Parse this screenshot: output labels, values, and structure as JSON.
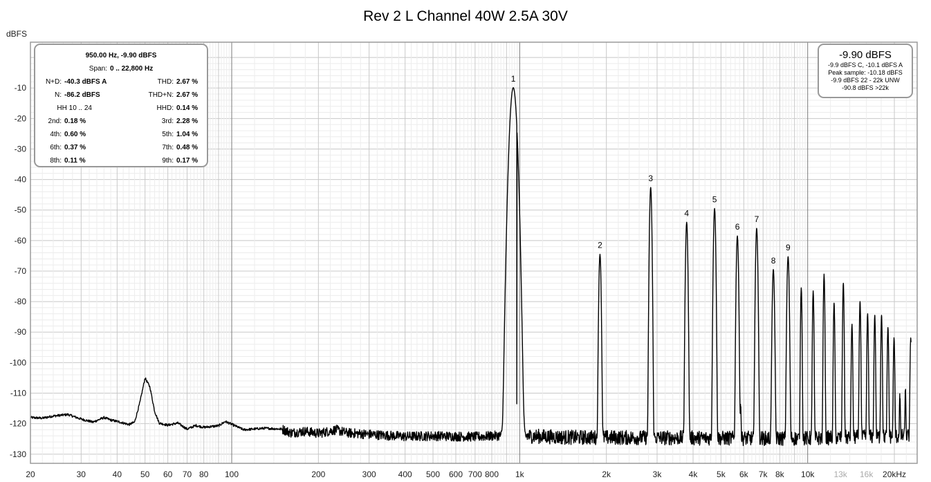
{
  "title": "Rev 2 L Channel 40W 2.5A 30V",
  "chart_data": {
    "type": "line",
    "title": "Rev 2 L Channel 40W 2.5A 30V",
    "xlabel": "",
    "ylabel": "dBFS",
    "x_scale": "log",
    "xlim": [
      20,
      24000
    ],
    "ylim": [
      -133,
      5
    ],
    "grid": true,
    "x_tick_labels": [
      {
        "v": 20,
        "t": "20"
      },
      {
        "v": 30,
        "t": "30"
      },
      {
        "v": 40,
        "t": "40"
      },
      {
        "v": 50,
        "t": "50"
      },
      {
        "v": 60,
        "t": "60"
      },
      {
        "v": 70,
        "t": "70"
      },
      {
        "v": 80,
        "t": "80"
      },
      {
        "v": 100,
        "t": "100"
      },
      {
        "v": 200,
        "t": "200"
      },
      {
        "v": 300,
        "t": "300"
      },
      {
        "v": 400,
        "t": "400"
      },
      {
        "v": 500,
        "t": "500"
      },
      {
        "v": 600,
        "t": "600"
      },
      {
        "v": 700,
        "t": "700"
      },
      {
        "v": 800,
        "t": "800"
      },
      {
        "v": 1000,
        "t": "1k"
      },
      {
        "v": 2000,
        "t": "2k"
      },
      {
        "v": 3000,
        "t": "3k"
      },
      {
        "v": 4000,
        "t": "4k"
      },
      {
        "v": 5000,
        "t": "5k"
      },
      {
        "v": 6000,
        "t": "6k"
      },
      {
        "v": 7000,
        "t": "7k"
      },
      {
        "v": 8000,
        "t": "8k"
      },
      {
        "v": 10000,
        "t": "10k"
      },
      {
        "v": 13000,
        "t": "13k",
        "light": true
      },
      {
        "v": 16000,
        "t": "16k",
        "light": true
      },
      {
        "v": 20000,
        "t": "20kHz"
      }
    ],
    "y_tick_labels": [
      {
        "v": -10,
        "t": "-10"
      },
      {
        "v": -20,
        "t": "-20"
      },
      {
        "v": -30,
        "t": "-30"
      },
      {
        "v": -40,
        "t": "-40"
      },
      {
        "v": -50,
        "t": "-50"
      },
      {
        "v": -60,
        "t": "-60"
      },
      {
        "v": -70,
        "t": "-70"
      },
      {
        "v": -80,
        "t": "-80"
      },
      {
        "v": -90,
        "t": "-90"
      },
      {
        "v": -100,
        "t": "-100"
      },
      {
        "v": -110,
        "t": "-110"
      },
      {
        "v": -120,
        "t": "-120"
      },
      {
        "v": -130,
        "t": "-130"
      }
    ],
    "noise_floor": [
      [
        20,
        -118
      ],
      [
        22,
        -118.2
      ],
      [
        24,
        -117.5
      ],
      [
        27,
        -117
      ],
      [
        30,
        -118.5
      ],
      [
        33,
        -119.5
      ],
      [
        36,
        -118
      ],
      [
        38,
        -118.8
      ],
      [
        41,
        -119.5
      ],
      [
        44,
        -120.3
      ],
      [
        46,
        -119.5
      ],
      [
        48,
        -113
      ],
      [
        50,
        -105
      ],
      [
        52,
        -108
      ],
      [
        54,
        -116
      ],
      [
        56,
        -119.8
      ],
      [
        60,
        -120.5
      ],
      [
        65,
        -119.8
      ],
      [
        70,
        -121.8
      ],
      [
        75,
        -120.6
      ],
      [
        80,
        -121.2
      ],
      [
        90,
        -120.7
      ],
      [
        95,
        -119.3
      ],
      [
        100,
        -120.2
      ],
      [
        110,
        -122
      ],
      [
        130,
        -121.5
      ],
      [
        150,
        -121.8
      ],
      [
        160,
        -123
      ],
      [
        180,
        -122.5
      ],
      [
        200,
        -123.2
      ],
      [
        230,
        -122
      ],
      [
        250,
        -123
      ],
      [
        300,
        -123.5
      ],
      [
        400,
        -124.2
      ],
      [
        500,
        -124
      ],
      [
        700,
        -124.3
      ],
      [
        900,
        -123.8
      ],
      [
        1500,
        -124.5
      ],
      [
        3000,
        -124.6
      ],
      [
        6000,
        -124.8
      ],
      [
        10000,
        -124.8
      ],
      [
        23000,
        -124
      ]
    ],
    "peaks": [
      {
        "label": "1",
        "freq": 950,
        "db": -9.9,
        "width": 0.018
      },
      {
        "label": "",
        "freq": 977,
        "db": -113.5,
        "width": 0.004
      },
      {
        "label": "2",
        "freq": 1900,
        "db": -64.5,
        "width": 0.006
      },
      {
        "label": "3",
        "freq": 2850,
        "db": -42.6,
        "width": 0.006
      },
      {
        "label": "4",
        "freq": 3800,
        "db": -54,
        "width": 0.006
      },
      {
        "label": "5",
        "freq": 4750,
        "db": -49.5,
        "width": 0.006
      },
      {
        "label": "6",
        "freq": 5700,
        "db": -58.5,
        "width": 0.006
      },
      {
        "label": "",
        "freq": 5850,
        "db": -115.5,
        "width": 0.003
      },
      {
        "label": "7",
        "freq": 6650,
        "db": -56,
        "width": 0.006
      },
      {
        "label": "8",
        "freq": 7600,
        "db": -69.5,
        "width": 0.006
      },
      {
        "label": "9",
        "freq": 8550,
        "db": -65.3,
        "width": 0.006
      },
      {
        "label": "",
        "freq": 9500,
        "db": -75.5,
        "width": 0.004
      },
      {
        "label": "",
        "freq": 10450,
        "db": -76.5,
        "width": 0.004
      },
      {
        "label": "",
        "freq": 11400,
        "db": -71,
        "width": 0.004
      },
      {
        "label": "",
        "freq": 12350,
        "db": -80.5,
        "width": 0.004
      },
      {
        "label": "",
        "freq": 13300,
        "db": -74,
        "width": 0.004
      },
      {
        "label": "",
        "freq": 14250,
        "db": -87.5,
        "width": 0.004
      },
      {
        "label": "",
        "freq": 15200,
        "db": -80,
        "width": 0.004
      },
      {
        "label": "",
        "freq": 16150,
        "db": -84,
        "width": 0.004
      },
      {
        "label": "",
        "freq": 17100,
        "db": -84.5,
        "width": 0.004
      },
      {
        "label": "",
        "freq": 18050,
        "db": -84.5,
        "width": 0.004
      },
      {
        "label": "",
        "freq": 19000,
        "db": -88.5,
        "width": 0.004
      },
      {
        "label": "",
        "freq": 19950,
        "db": -92,
        "width": 0.004
      },
      {
        "label": "",
        "freq": 20900,
        "db": -112,
        "width": 0.003
      },
      {
        "label": "",
        "freq": 21850,
        "db": -110,
        "width": 0.003
      },
      {
        "label": "",
        "freq": 22800,
        "db": -92,
        "width": 0.004
      }
    ]
  },
  "left_panel": {
    "header": "950.00 Hz, -9.90 dBFS",
    "span_label": "Span:",
    "span_value": "0 .. 22,800 Hz",
    "nd_label": "N+D:",
    "nd_value": "-40.3 dBFS A",
    "thd_label": "THD:",
    "thd_value": "2.67 %",
    "n_label": "N:",
    "n_value": "-86.2 dBFS",
    "thdn_label": "THD+N:",
    "thdn_value": "2.67 %",
    "hh_label": "HH 10 .. 24",
    "hhd_label": "HHD:",
    "hhd_value": "0.14 %",
    "h2_label": "2nd:",
    "h2_value": "0.18 %",
    "h3_label": "3rd:",
    "h3_value": "2.28 %",
    "h4_label": "4th:",
    "h4_value": "0.60 %",
    "h5_label": "5th:",
    "h5_value": "1.04 %",
    "h6_label": "6th:",
    "h6_value": "0.37 %",
    "h7_label": "7th:",
    "h7_value": "0.48 %",
    "h8_label": "8th:",
    "h8_value": "0.11 %",
    "h9_label": "9th:",
    "h9_value": "0.17 %"
  },
  "right_panel": {
    "level": "-9.90 dBFS",
    "line1": "-9.9 dBFS C, -10.1 dBFS A",
    "line2": "Peak sample: -10.18 dBFS",
    "line3": "-9.9 dBFS 22 - 22k UNW",
    "line4": "-90.8 dBFS >22k"
  }
}
